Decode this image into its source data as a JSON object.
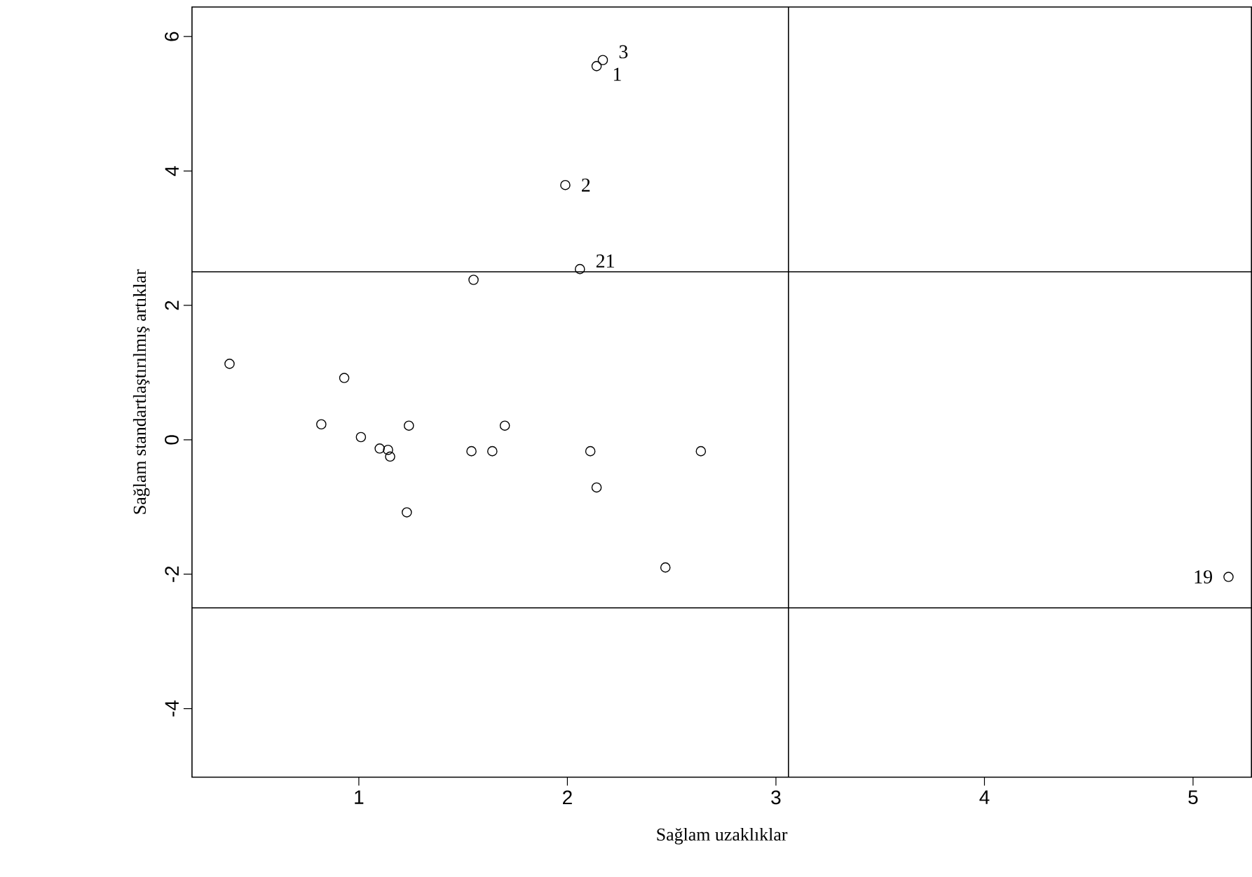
{
  "chart_data": {
    "type": "scatter",
    "xlabel": "Sağlam uzaklıklar",
    "ylabel": "Sağlam standartlaştırılmış artıklar",
    "x": [
      0.38,
      0.93,
      0.82,
      1.01,
      1.1,
      1.14,
      1.15,
      1.24,
      1.23,
      1.54,
      1.64,
      1.7,
      2.11,
      2.14,
      2.47,
      2.64,
      2.17,
      2.14,
      1.99,
      2.06,
      5.17,
      1.55
    ],
    "series": [
      {
        "color": "#000000",
        "values": [
          1.13,
          0.92,
          0.23,
          0.04,
          -0.13,
          -0.15,
          -0.25,
          0.21,
          -1.08,
          -0.17,
          -0.17,
          0.21,
          -0.17,
          -0.71,
          -1.9,
          -0.17,
          5.65,
          5.56,
          3.79,
          2.54,
          -2.04,
          2.38
        ]
      }
    ],
    "marker": "circle",
    "xlim": [
      0.2,
      5.28
    ],
    "ylim": [
      -5.02,
      6.44
    ],
    "xticks": [
      1,
      2,
      3,
      4,
      5
    ],
    "yticks": [
      -4,
      -2,
      0,
      2,
      4,
      6
    ],
    "grid": false,
    "ref_lines": [
      {
        "axis": "x",
        "value": 3.06,
        "color": "#000000"
      },
      {
        "axis": "y",
        "value": 2.5,
        "color": "#000000"
      },
      {
        "axis": "y",
        "value": -2.5,
        "color": "#000000"
      }
    ],
    "annotations": [
      {
        "text": "3",
        "x": 2.17,
        "y": 5.65
      },
      {
        "text": "1",
        "x": 2.14,
        "y": 5.56
      },
      {
        "text": "2",
        "x": 1.99,
        "y": 3.79
      },
      {
        "text": "21",
        "x": 2.06,
        "y": 2.54
      },
      {
        "text": "19",
        "x": 5.17,
        "y": -2.04
      }
    ]
  }
}
